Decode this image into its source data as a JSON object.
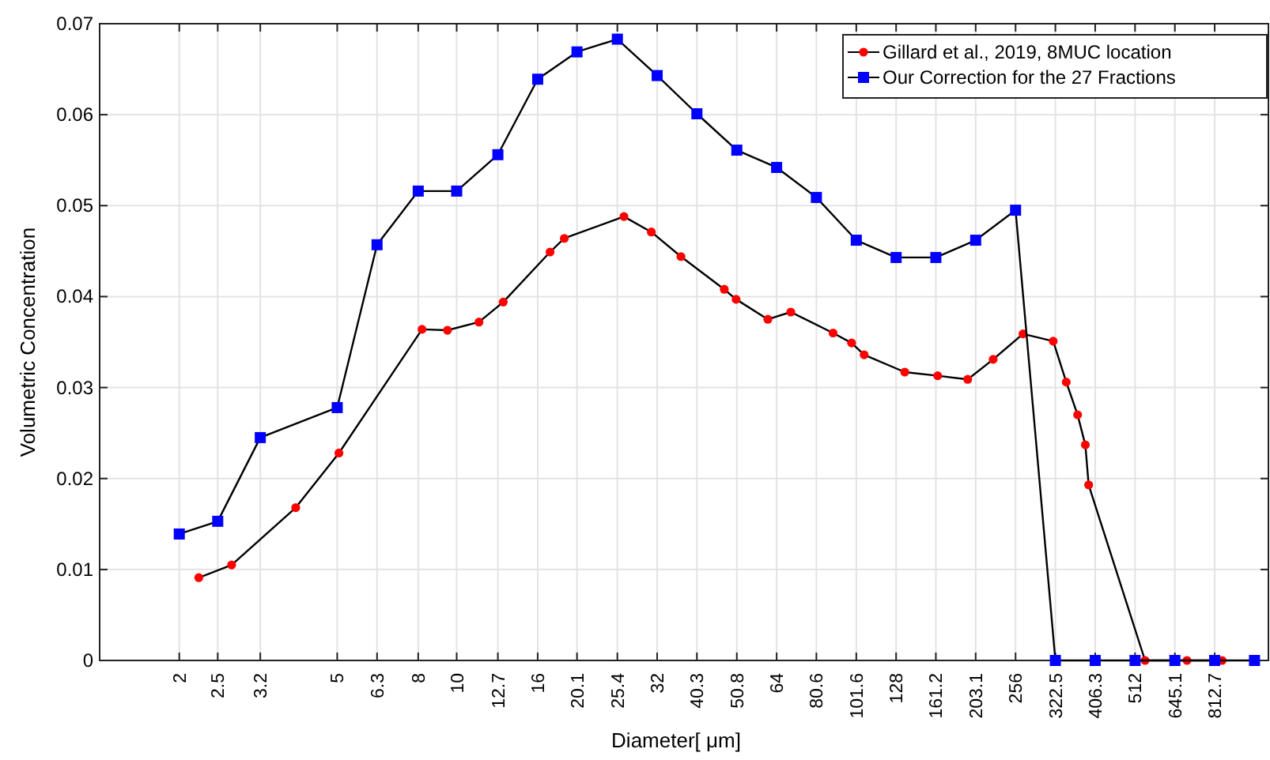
{
  "chart_data": {
    "type": "line",
    "xlabel": "Diameter[  μm]",
    "ylabel": "Volumetric Concentration",
    "log": "x",
    "xlim": [
      1.26,
      1110
    ],
    "ylim": [
      0,
      0.07
    ],
    "xticks": [
      2,
      2.5,
      3.2,
      5,
      6.3,
      8,
      10,
      12.7,
      16,
      20.1,
      25.4,
      32,
      40.3,
      50.8,
      64,
      80.6,
      101.6,
      128,
      161.2,
      203.1,
      256,
      322.5,
      406.3,
      512,
      645.1,
      812.7
    ],
    "yticks": [
      0,
      0.01,
      0.02,
      0.03,
      0.04,
      0.05,
      0.06,
      0.07
    ],
    "grid": true,
    "legend": "top right",
    "line_style": "solid",
    "series": [
      {
        "name": "Gillard et al., 2019, 8MUC location",
        "color": "#ff0000",
        "marker": "circle",
        "x": [
          2.24,
          2.71,
          3.93,
          5.05,
          8.18,
          9.48,
          11.38,
          13.1,
          17.19,
          18.67,
          26.39,
          30.94,
          36.73,
          47.23,
          50.59,
          60.83,
          69.48,
          88.79,
          98.87,
          106.35,
          134.6,
          162.9,
          193.9,
          224.8,
          267.3,
          318.5,
          343.5,
          366.9,
          383.7,
          391.2,
          542.6,
          692,
          848.6
        ],
        "values": [
          0.0091,
          0.0105,
          0.0168,
          0.0228,
          0.0364,
          0.0363,
          0.0372,
          0.0394,
          0.0449,
          0.0464,
          0.0488,
          0.0471,
          0.0444,
          0.0408,
          0.0397,
          0.0375,
          0.0383,
          0.036,
          0.0349,
          0.0336,
          0.0317,
          0.0313,
          0.0309,
          0.0331,
          0.0359,
          0.0351,
          0.0306,
          0.027,
          0.0237,
          0.0193,
          0,
          0,
          0
        ]
      },
      {
        "name": "Our Correction for the 27 Fractions",
        "color": "#0000ff",
        "marker": "square",
        "x": [
          2,
          2.5,
          3.2,
          5,
          6.3,
          8,
          10,
          12.7,
          16,
          20.1,
          25.4,
          32,
          40.3,
          50.8,
          64,
          80.6,
          101.6,
          128,
          161.2,
          203.1,
          256,
          322.5,
          406.3,
          512,
          645.1,
          812.7,
          1024
        ],
        "values": [
          0.0139,
          0.0153,
          0.0245,
          0.0278,
          0.0457,
          0.0516,
          0.0516,
          0.0556,
          0.0639,
          0.0669,
          0.0683,
          0.0643,
          0.0601,
          0.0561,
          0.0542,
          0.0509,
          0.0462,
          0.0443,
          0.0443,
          0.0462,
          0.0495,
          0,
          0,
          0,
          0,
          0,
          0
        ]
      }
    ]
  }
}
